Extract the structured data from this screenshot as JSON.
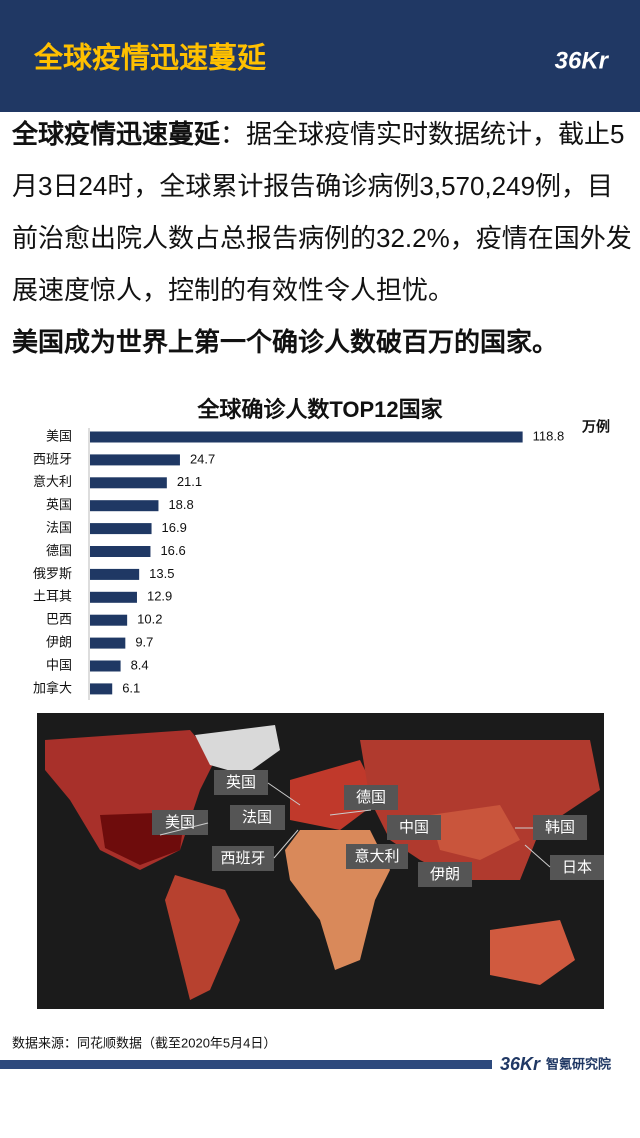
{
  "header": {
    "title": "全球疫情迅速蔓延",
    "logo": "36Kr"
  },
  "intro": {
    "lead": "全球疫情迅速蔓延",
    "text": "：据全球疫情实时数据统计，截止5月3日24时，全球累计报告确诊病例3,570,249例，目前治愈出院人数占总报告病例的32.2%，疫情在国外发展速度惊人，控制的有效性令人担忧。",
    "highlight": "美国成为世界上第一个确诊人数破百万的国家。"
  },
  "chart_data": {
    "type": "bar",
    "orientation": "horizontal",
    "title": "全球确诊人数TOP12国家",
    "unit": "万例",
    "categories": [
      "美国",
      "西班牙",
      "意大利",
      "英国",
      "法国",
      "德国",
      "俄罗斯",
      "土耳其",
      "巴西",
      "伊朗",
      "中国",
      "加拿大"
    ],
    "values": [
      118.8,
      24.7,
      21.1,
      18.8,
      16.9,
      16.6,
      13.5,
      12.9,
      10.2,
      9.7,
      8.4,
      6.1
    ],
    "color": "#1f3864",
    "xlim": [
      0,
      120
    ]
  },
  "map": {
    "labels": [
      "英国",
      "美国",
      "法国",
      "德国",
      "中国",
      "韩国",
      "西班牙",
      "意大利",
      "伊朗",
      "日本"
    ]
  },
  "footer": {
    "source": "数据来源：同花顺数据（截至2020年5月4日）",
    "logo": "36Kr",
    "brand": "智氪研究院"
  }
}
